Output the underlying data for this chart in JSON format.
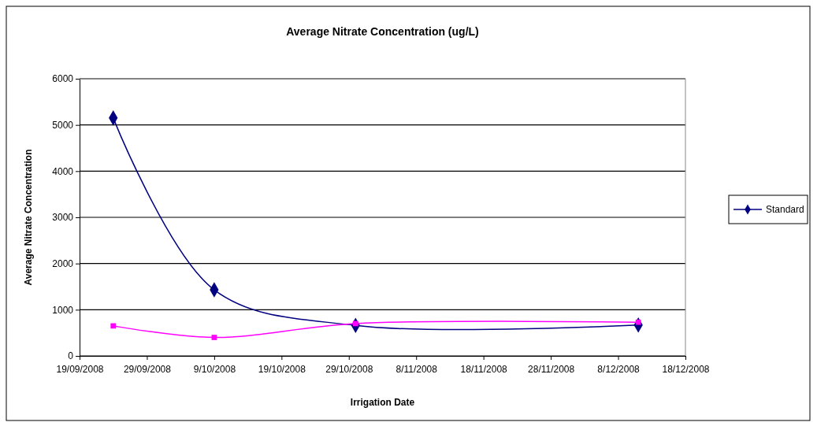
{
  "chart_data": {
    "type": "line",
    "title": "Average Nitrate Concentration (ug/L)",
    "xlabel": "Irrigation Date",
    "ylabel": "Average Nitrate Concentration",
    "x": [
      "2008-09-24",
      "2008-10-09",
      "2008-10-30",
      "2008-12-11"
    ],
    "series": [
      {
        "name": "Standard",
        "color": "#000080",
        "marker": "diamond",
        "values": [
          5150,
          1430,
          660,
          670
        ]
      },
      {
        "color": "#ff00ff",
        "marker": "square",
        "values": [
          650,
          400,
          700,
          730
        ]
      }
    ],
    "xlim": [
      "2008-09-19",
      "2008-12-18"
    ],
    "xticks": [
      {
        "value": "2008-09-19",
        "label": "19/09/2008"
      },
      {
        "value": "2008-09-29",
        "label": "29/09/2008"
      },
      {
        "value": "2008-10-09",
        "label": "9/10/2008"
      },
      {
        "value": "2008-10-19",
        "label": "19/10/2008"
      },
      {
        "value": "2008-10-29",
        "label": "29/10/2008"
      },
      {
        "value": "2008-11-08",
        "label": "8/11/2008"
      },
      {
        "value": "2008-11-18",
        "label": "18/11/2008"
      },
      {
        "value": "2008-11-28",
        "label": "28/11/2008"
      },
      {
        "value": "2008-12-08",
        "label": "8/12/2008"
      },
      {
        "value": "2008-12-18",
        "label": "18/12/2008"
      }
    ],
    "ylim": [
      0,
      6000
    ],
    "yticks": [
      0,
      1000,
      2000,
      3000,
      4000,
      5000,
      6000
    ],
    "grid": "y",
    "legend": "right",
    "line_style": "solid"
  }
}
